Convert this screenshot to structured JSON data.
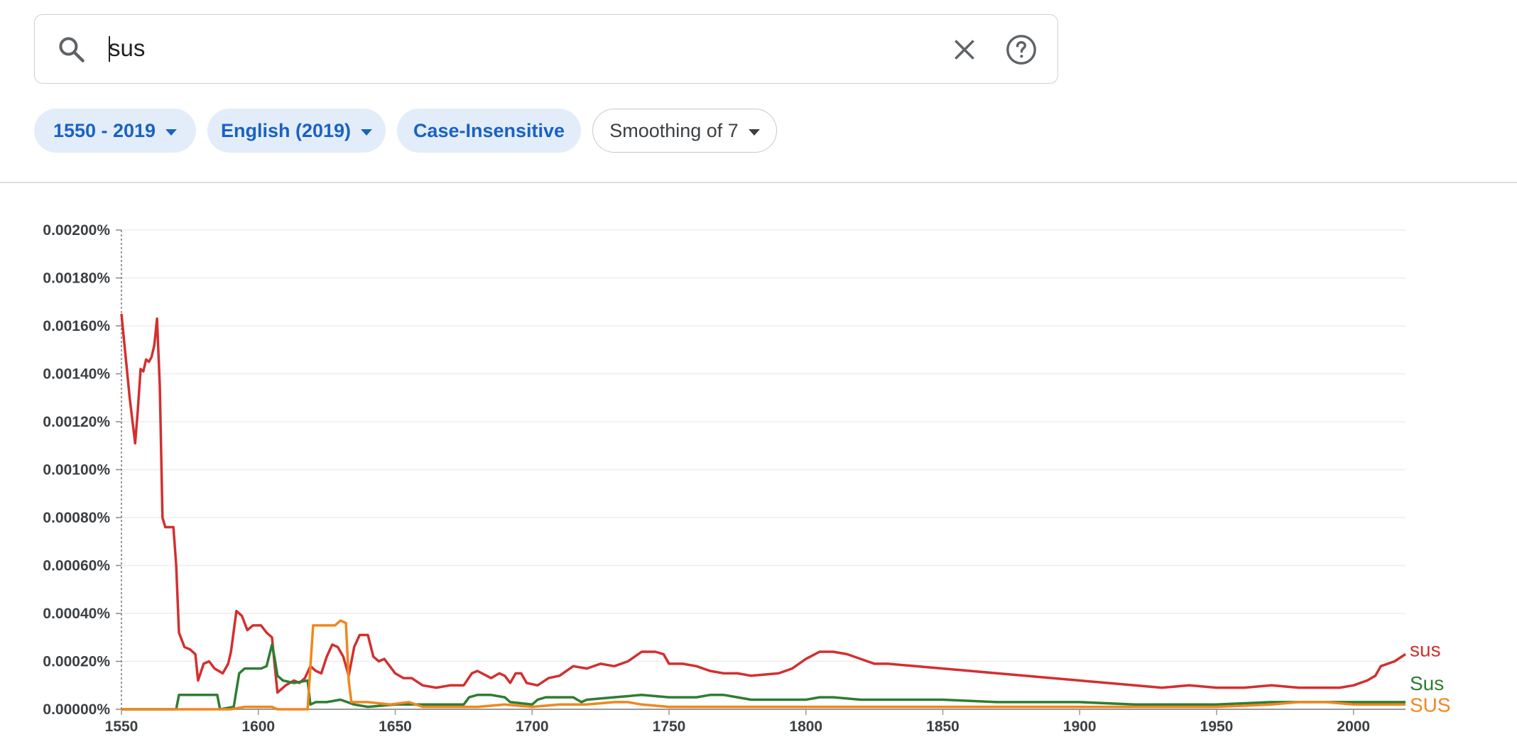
{
  "search": {
    "query": "sus"
  },
  "icons": {
    "search": "search-icon",
    "clear": "close-icon",
    "help": "help-circle-icon",
    "dropdown": "triangle-down-icon"
  },
  "filters": {
    "year_range": "1550 - 2019",
    "corpus": "English (2019)",
    "case": "Case-Insensitive",
    "smoothing": "Smoothing of 7"
  },
  "colors": {
    "chip_blue_bg": "#e3edf9",
    "chip_blue_text": "#1a62c4",
    "sus": "#d32f2f",
    "Sus": "#2e7d32",
    "SUS": "#f0871e"
  },
  "chart_data": {
    "type": "line",
    "xlim": [
      1550,
      2019
    ],
    "ylim": [
      0,
      0.002
    ],
    "x_ticks": [
      1550,
      1600,
      1650,
      1700,
      1750,
      1800,
      1850,
      1900,
      1950,
      2000
    ],
    "y_ticks": [
      "0.00000%",
      "0.00020%",
      "0.00040%",
      "0.00060%",
      "0.00080%",
      "0.00100%",
      "0.00120%",
      "0.00140%",
      "0.00160%",
      "0.00180%",
      "0.00200%"
    ],
    "grid": true,
    "legend": "series labels at right end of lines",
    "series": [
      {
        "name": "sus",
        "color": "#d32f2f",
        "points": [
          [
            1550,
            0.00165
          ],
          [
            1553,
            0.0013
          ],
          [
            1555,
            0.00111
          ],
          [
            1556,
            0.00125
          ],
          [
            1557,
            0.00142
          ],
          [
            1558,
            0.00141
          ],
          [
            1559,
            0.00146
          ],
          [
            1560,
            0.00145
          ],
          [
            1561,
            0.00147
          ],
          [
            1562,
            0.00152
          ],
          [
            1563,
            0.00163
          ],
          [
            1564,
            0.00135
          ],
          [
            1565,
            0.0008
          ],
          [
            1566,
            0.00076
          ],
          [
            1569,
            0.00076
          ],
          [
            1570,
            0.0006
          ],
          [
            1571,
            0.00032
          ],
          [
            1573,
            0.00026
          ],
          [
            1575,
            0.00025
          ],
          [
            1577,
            0.00023
          ],
          [
            1578,
            0.00012
          ],
          [
            1580,
            0.00019
          ],
          [
            1582,
            0.0002
          ],
          [
            1584,
            0.00017
          ],
          [
            1587,
            0.00015
          ],
          [
            1589,
            0.00019
          ],
          [
            1590,
            0.00024
          ],
          [
            1592,
            0.00041
          ],
          [
            1594,
            0.00039
          ],
          [
            1596,
            0.00033
          ],
          [
            1598,
            0.00035
          ],
          [
            1601,
            0.00035
          ],
          [
            1603,
            0.00032
          ],
          [
            1605,
            0.0003
          ],
          [
            1606,
            0.00018
          ],
          [
            1607,
            7e-05
          ],
          [
            1610,
            0.0001
          ],
          [
            1613,
            0.00012
          ],
          [
            1615,
            0.00011
          ],
          [
            1617,
            0.00013
          ],
          [
            1619,
            0.00018
          ],
          [
            1621,
            0.00016
          ],
          [
            1623,
            0.00015
          ],
          [
            1625,
            0.00022
          ],
          [
            1627,
            0.00027
          ],
          [
            1629,
            0.00026
          ],
          [
            1631,
            0.00022
          ],
          [
            1633,
            0.00014
          ],
          [
            1635,
            0.00026
          ],
          [
            1637,
            0.00031
          ],
          [
            1640,
            0.00031
          ],
          [
            1642,
            0.00022
          ],
          [
            1644,
            0.0002
          ],
          [
            1646,
            0.00021
          ],
          [
            1650,
            0.00015
          ],
          [
            1653,
            0.00013
          ],
          [
            1656,
            0.00013
          ],
          [
            1660,
            0.0001
          ],
          [
            1665,
            9e-05
          ],
          [
            1670,
            0.0001
          ],
          [
            1675,
            0.0001
          ],
          [
            1678,
            0.00015
          ],
          [
            1680,
            0.00016
          ],
          [
            1685,
            0.00013
          ],
          [
            1688,
            0.00015
          ],
          [
            1690,
            0.00014
          ],
          [
            1692,
            0.00011
          ],
          [
            1694,
            0.00015
          ],
          [
            1696,
            0.00015
          ],
          [
            1698,
            0.00011
          ],
          [
            1702,
            0.0001
          ],
          [
            1706,
            0.00013
          ],
          [
            1710,
            0.00014
          ],
          [
            1715,
            0.00018
          ],
          [
            1720,
            0.00017
          ],
          [
            1725,
            0.00019
          ],
          [
            1730,
            0.00018
          ],
          [
            1735,
            0.0002
          ],
          [
            1740,
            0.00024
          ],
          [
            1745,
            0.00024
          ],
          [
            1748,
            0.00023
          ],
          [
            1750,
            0.00019
          ],
          [
            1755,
            0.00019
          ],
          [
            1760,
            0.00018
          ],
          [
            1765,
            0.00016
          ],
          [
            1770,
            0.00015
          ],
          [
            1775,
            0.00015
          ],
          [
            1780,
            0.00014
          ],
          [
            1790,
            0.00015
          ],
          [
            1795,
            0.00017
          ],
          [
            1800,
            0.00021
          ],
          [
            1805,
            0.00024
          ],
          [
            1810,
            0.00024
          ],
          [
            1815,
            0.00023
          ],
          [
            1820,
            0.00021
          ],
          [
            1825,
            0.00019
          ],
          [
            1830,
            0.00019
          ],
          [
            1840,
            0.00018
          ],
          [
            1850,
            0.00017
          ],
          [
            1860,
            0.00016
          ],
          [
            1870,
            0.00015
          ],
          [
            1880,
            0.00014
          ],
          [
            1890,
            0.00013
          ],
          [
            1900,
            0.00012
          ],
          [
            1910,
            0.00011
          ],
          [
            1920,
            0.0001
          ],
          [
            1930,
            9e-05
          ],
          [
            1940,
            0.0001
          ],
          [
            1950,
            9e-05
          ],
          [
            1960,
            9e-05
          ],
          [
            1970,
            0.0001
          ],
          [
            1980,
            9e-05
          ],
          [
            1990,
            9e-05
          ],
          [
            1995,
            9e-05
          ],
          [
            2000,
            0.0001
          ],
          [
            2005,
            0.00012
          ],
          [
            2008,
            0.00014
          ],
          [
            2010,
            0.00018
          ],
          [
            2015,
            0.0002
          ],
          [
            2019,
            0.00023
          ]
        ]
      },
      {
        "name": "Sus",
        "color": "#2e7d32",
        "points": [
          [
            1550,
            0.0
          ],
          [
            1570,
            0.0
          ],
          [
            1571,
            6e-05
          ],
          [
            1585,
            6e-05
          ],
          [
            1586,
            0.0
          ],
          [
            1591,
            1e-05
          ],
          [
            1593,
            0.00015
          ],
          [
            1595,
            0.00017
          ],
          [
            1601,
            0.00017
          ],
          [
            1603,
            0.00018
          ],
          [
            1605,
            0.00027
          ],
          [
            1606,
            0.00021
          ],
          [
            1607,
            0.00014
          ],
          [
            1609,
            0.00012
          ],
          [
            1613,
            0.00011
          ],
          [
            1618,
            0.00012
          ],
          [
            1619,
            2e-05
          ],
          [
            1621,
            3e-05
          ],
          [
            1625,
            3e-05
          ],
          [
            1630,
            4e-05
          ],
          [
            1635,
            2e-05
          ],
          [
            1640,
            1e-05
          ],
          [
            1650,
            2e-05
          ],
          [
            1660,
            2e-05
          ],
          [
            1670,
            2e-05
          ],
          [
            1675,
            2e-05
          ],
          [
            1677,
            5e-05
          ],
          [
            1680,
            6e-05
          ],
          [
            1685,
            6e-05
          ],
          [
            1690,
            5e-05
          ],
          [
            1692,
            3e-05
          ],
          [
            1700,
            2e-05
          ],
          [
            1702,
            4e-05
          ],
          [
            1705,
            5e-05
          ],
          [
            1715,
            5e-05
          ],
          [
            1718,
            3e-05
          ],
          [
            1720,
            4e-05
          ],
          [
            1730,
            5e-05
          ],
          [
            1740,
            6e-05
          ],
          [
            1750,
            5e-05
          ],
          [
            1760,
            5e-05
          ],
          [
            1765,
            6e-05
          ],
          [
            1770,
            6e-05
          ],
          [
            1775,
            5e-05
          ],
          [
            1780,
            4e-05
          ],
          [
            1790,
            4e-05
          ],
          [
            1800,
            4e-05
          ],
          [
            1805,
            5e-05
          ],
          [
            1810,
            5e-05
          ],
          [
            1820,
            4e-05
          ],
          [
            1830,
            4e-05
          ],
          [
            1850,
            4e-05
          ],
          [
            1870,
            3e-05
          ],
          [
            1900,
            3e-05
          ],
          [
            1920,
            2e-05
          ],
          [
            1950,
            2e-05
          ],
          [
            1970,
            3e-05
          ],
          [
            1980,
            3e-05
          ],
          [
            1990,
            3e-05
          ],
          [
            2000,
            3e-05
          ],
          [
            2010,
            3e-05
          ],
          [
            2019,
            3e-05
          ]
        ]
      },
      {
        "name": "SUS",
        "color": "#f0871e",
        "points": [
          [
            1550,
            0.0
          ],
          [
            1590,
            0.0
          ],
          [
            1595,
            1e-05
          ],
          [
            1605,
            1e-05
          ],
          [
            1607,
            0.0
          ],
          [
            1618,
            0.0
          ],
          [
            1620,
            0.00035
          ],
          [
            1622,
            0.00035
          ],
          [
            1628,
            0.00035
          ],
          [
            1630,
            0.00037
          ],
          [
            1632,
            0.00036
          ],
          [
            1633,
            0.00012
          ],
          [
            1634,
            3e-05
          ],
          [
            1640,
            3e-05
          ],
          [
            1648,
            2e-05
          ],
          [
            1655,
            3e-05
          ],
          [
            1660,
            1e-05
          ],
          [
            1670,
            1e-05
          ],
          [
            1680,
            1e-05
          ],
          [
            1690,
            2e-05
          ],
          [
            1700,
            1e-05
          ],
          [
            1710,
            2e-05
          ],
          [
            1720,
            2e-05
          ],
          [
            1730,
            3e-05
          ],
          [
            1735,
            3e-05
          ],
          [
            1740,
            2e-05
          ],
          [
            1750,
            1e-05
          ],
          [
            1760,
            1e-05
          ],
          [
            1780,
            1e-05
          ],
          [
            1800,
            1e-05
          ],
          [
            1850,
            1e-05
          ],
          [
            1900,
            1e-05
          ],
          [
            1950,
            1e-05
          ],
          [
            1970,
            2e-05
          ],
          [
            1980,
            3e-05
          ],
          [
            1990,
            3e-05
          ],
          [
            2000,
            2e-05
          ],
          [
            2010,
            2e-05
          ],
          [
            2019,
            2e-05
          ]
        ]
      }
    ]
  }
}
